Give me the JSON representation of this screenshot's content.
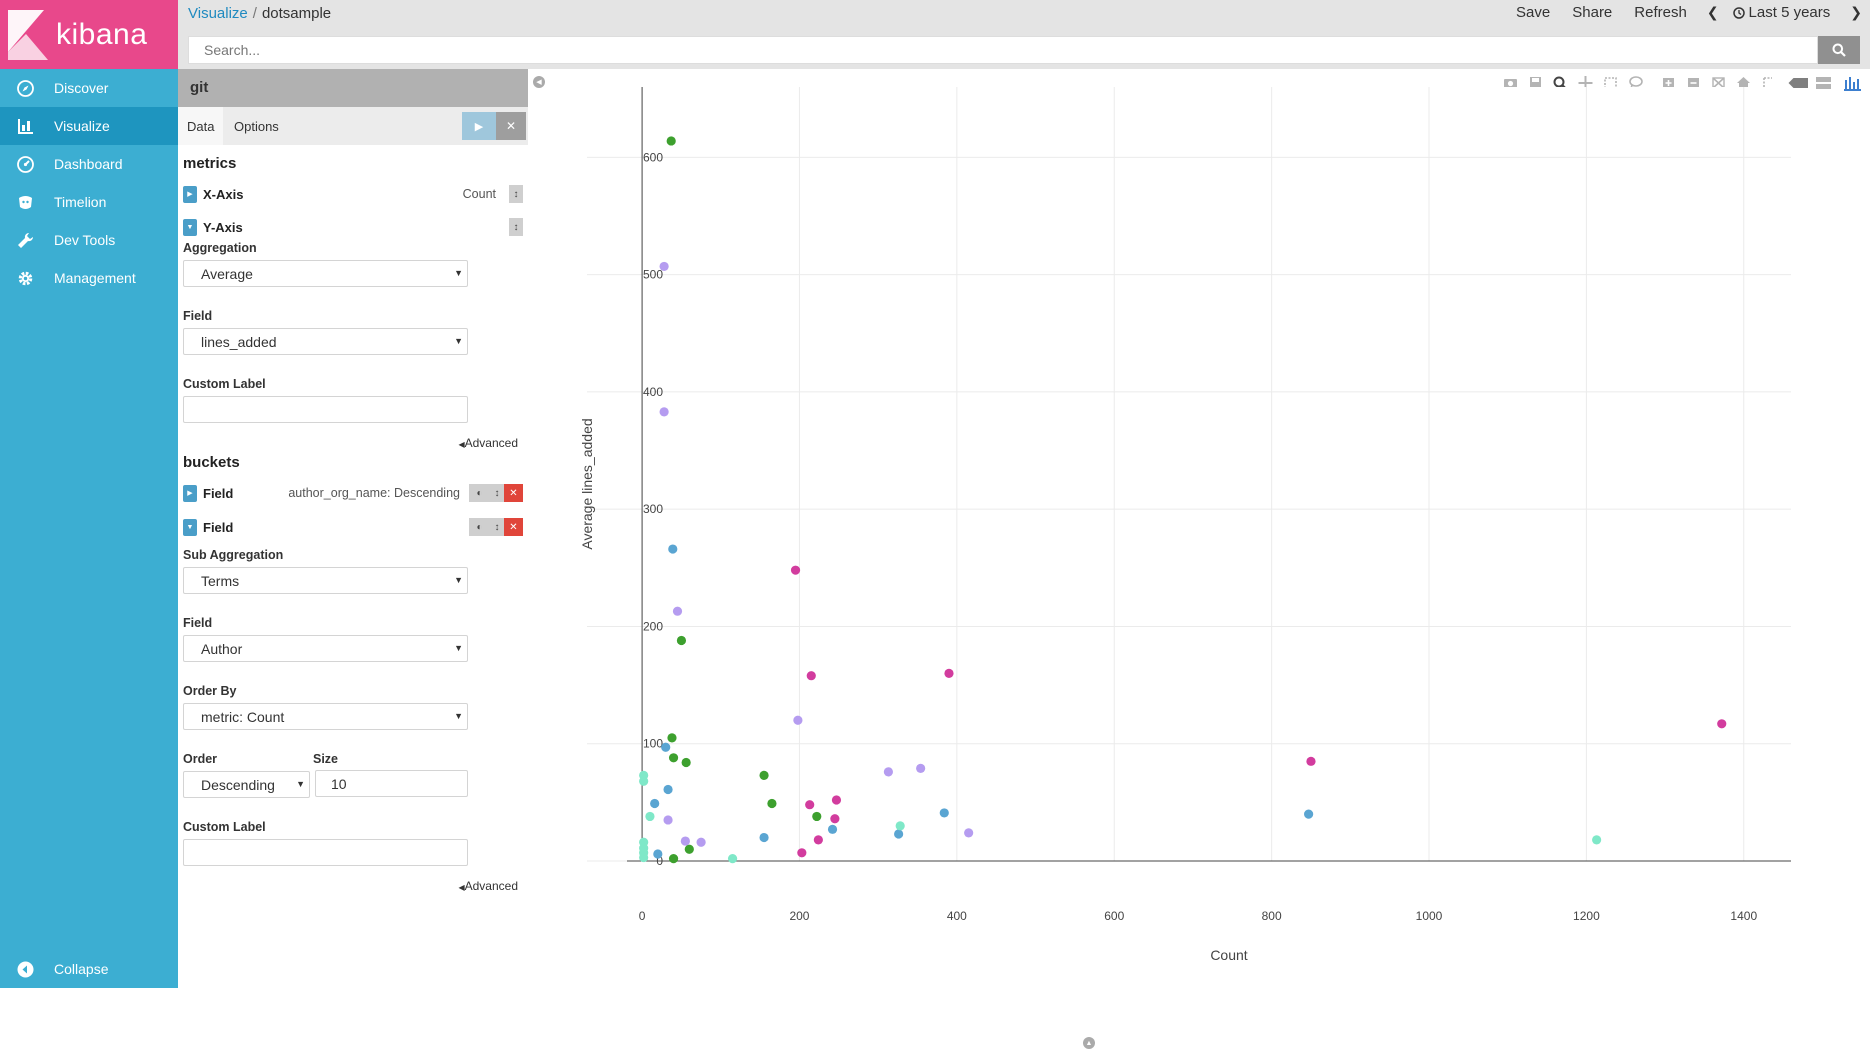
{
  "brand": {
    "name": "kibana"
  },
  "nav": {
    "items": [
      {
        "label": "Discover",
        "icon": "compass-icon"
      },
      {
        "label": "Visualize",
        "icon": "bar-chart-icon",
        "active": true
      },
      {
        "label": "Dashboard",
        "icon": "dashboard-icon"
      },
      {
        "label": "Timelion",
        "icon": "timelion-icon"
      },
      {
        "label": "Dev Tools",
        "icon": "wrench-icon"
      },
      {
        "label": "Management",
        "icon": "gear-icon"
      }
    ],
    "collapse_label": "Collapse"
  },
  "breadcrumb": {
    "parent": "Visualize",
    "separator": "/",
    "current": "dotsample"
  },
  "top_menu": {
    "save": "Save",
    "share": "Share",
    "refresh": "Refresh",
    "time_range": "Last 5 years"
  },
  "search": {
    "placeholder": "Search..."
  },
  "editor": {
    "index": "git",
    "tabs": {
      "data": "Data",
      "options": "Options"
    },
    "metrics_title": "metrics",
    "x_axis": {
      "title": "X-Axis",
      "desc": "Count"
    },
    "y_axis": {
      "title": "Y-Axis"
    },
    "aggregation_label": "Aggregation",
    "aggregation_value": "Average",
    "field_label": "Field",
    "field_value": "lines_added",
    "custom_label_label": "Custom Label",
    "custom_label_value": "",
    "advanced_label": "Advanced",
    "buckets_title": "buckets",
    "bucket1": {
      "title": "Field",
      "desc": "author_org_name: Descending"
    },
    "bucket2": {
      "title": "Field"
    },
    "sub_agg_label": "Sub Aggregation",
    "sub_agg_value": "Terms",
    "field2_label": "Field",
    "field2_value": "Author",
    "order_by_label": "Order By",
    "order_by_value": "metric: Count",
    "order_label": "Order",
    "order_value": "Descending",
    "size_label": "Size",
    "size_value": "10",
    "custom_label2_label": "Custom Label",
    "custom_label2_value": "",
    "advanced2_label": "Advanced"
  },
  "chart_data": {
    "type": "scatter",
    "xlabel": "Count",
    "ylabel": "Average lines_added",
    "xlim": [
      -70,
      1460
    ],
    "ylim": [
      0,
      660
    ],
    "xticks": [
      0,
      200,
      400,
      600,
      800,
      1000,
      1200,
      1400
    ],
    "yticks": [
      0,
      100,
      200,
      300,
      400,
      500,
      600
    ],
    "grid": true,
    "series": [
      {
        "color": "#3da02e",
        "points": [
          [
            37,
            614
          ],
          [
            50,
            188
          ],
          [
            38,
            105
          ],
          [
            40,
            88
          ],
          [
            56,
            84
          ],
          [
            155,
            73
          ],
          [
            165,
            49
          ],
          [
            222,
            38
          ],
          [
            60,
            10
          ],
          [
            40,
            2
          ]
        ]
      },
      {
        "color": "#b59cf0",
        "points": [
          [
            28,
            507
          ],
          [
            28,
            383
          ],
          [
            45,
            213
          ],
          [
            198,
            120
          ],
          [
            354,
            79
          ],
          [
            313,
            76
          ],
          [
            33,
            35
          ],
          [
            55,
            17
          ],
          [
            75,
            16
          ],
          [
            415,
            24
          ]
        ]
      },
      {
        "color": "#5aa5d2",
        "points": [
          [
            39,
            266
          ],
          [
            30,
            97
          ],
          [
            33,
            61
          ],
          [
            16,
            49
          ],
          [
            20,
            6
          ],
          [
            155,
            20
          ],
          [
            242,
            27
          ],
          [
            326,
            23
          ],
          [
            384,
            41
          ],
          [
            847,
            40
          ]
        ]
      },
      {
        "color": "#d23c9e",
        "points": [
          [
            195,
            248
          ],
          [
            215,
            158
          ],
          [
            390,
            160
          ],
          [
            213,
            48
          ],
          [
            247,
            52
          ],
          [
            245,
            36
          ],
          [
            224,
            18
          ],
          [
            203,
            7
          ],
          [
            850,
            85
          ],
          [
            1372,
            117
          ]
        ]
      },
      {
        "color": "#7fe8c8",
        "points": [
          [
            2,
            73
          ],
          [
            2,
            68
          ],
          [
            10,
            38
          ],
          [
            2,
            16
          ],
          [
            2,
            11
          ],
          [
            2,
            7
          ],
          [
            2,
            3
          ],
          [
            115,
            2
          ],
          [
            328,
            30
          ],
          [
            1213,
            18
          ]
        ]
      }
    ]
  }
}
